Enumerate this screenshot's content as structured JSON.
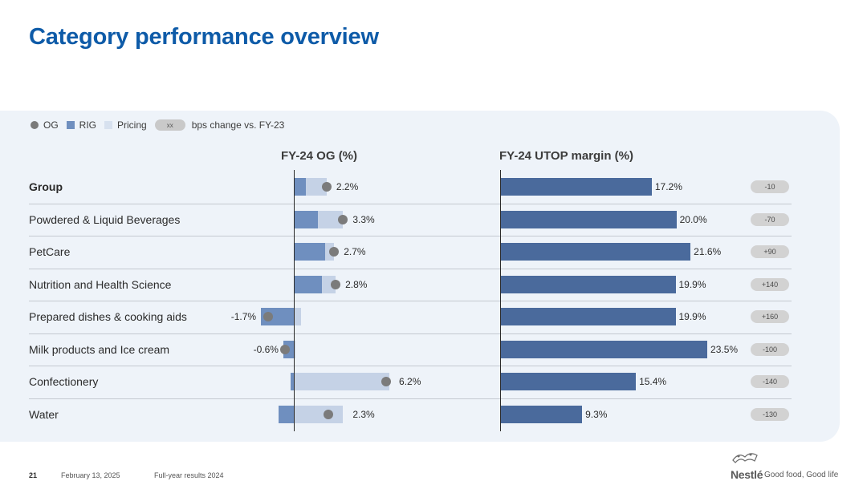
{
  "title": "Category performance overview",
  "legend": {
    "og": "OG",
    "rig": "RIG",
    "pricing": "Pricing",
    "pill": "xx",
    "bps": "bps change vs. FY-23"
  },
  "colors": {
    "rig": "#6f8fbf",
    "pricing": "#c5d2e6",
    "og": "#7b7b7b",
    "utop": "#4a6a9c",
    "title": "#0e5ba8"
  },
  "chart_data": [
    {
      "type": "bar",
      "title": "FY-24 OG (%)",
      "categories": [
        "Group",
        "Powdered & Liquid Beverages",
        "PetCare",
        "Nutrition and Health Science",
        "Prepared dishes & cooking aids",
        "Milk products and Ice cream",
        "Confectionery",
        "Water"
      ],
      "series": [
        {
          "name": "RIG",
          "values": [
            0.8,
            1.6,
            2.1,
            1.9,
            -2.2,
            -0.7,
            -0.2,
            -1.0
          ]
        },
        {
          "name": "Pricing",
          "values": [
            1.4,
            1.7,
            0.6,
            0.9,
            0.5,
            0.1,
            6.4,
            3.3
          ]
        },
        {
          "name": "OG",
          "values": [
            2.2,
            3.3,
            2.7,
            2.8,
            -1.7,
            -0.6,
            6.2,
            2.3
          ]
        }
      ],
      "labels": [
        "2.2%",
        "3.3%",
        "2.7%",
        "2.8%",
        "-1.7%",
        "-0.6%",
        "6.2%",
        "2.3%"
      ]
    },
    {
      "type": "bar",
      "title": "FY-24 UTOP margin (%)",
      "categories": [
        "Group",
        "Powdered & Liquid Beverages",
        "PetCare",
        "Nutrition and Health Science",
        "Prepared dishes & cooking aids",
        "Milk products and Ice cream",
        "Confectionery",
        "Water"
      ],
      "values": [
        17.2,
        20.0,
        21.6,
        19.9,
        19.9,
        23.5,
        15.4,
        9.3
      ],
      "labels": [
        "17.2%",
        "20.0%",
        "21.6%",
        "19.9%",
        "19.9%",
        "23.5%",
        "15.4%",
        "9.3%"
      ],
      "bps_change": [
        "-10",
        "-70",
        "+90",
        "+140",
        "+160",
        "-100",
        "-140",
        "-130"
      ]
    }
  ],
  "footer": {
    "page": "21",
    "date": "February 13, 2025",
    "doc": "Full-year results 2024",
    "brand": "Nestlé",
    "tagline": "Good food, Good life"
  }
}
